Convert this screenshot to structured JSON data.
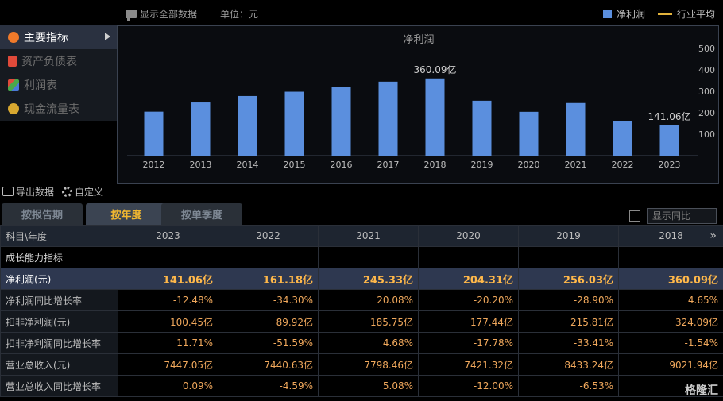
{
  "topbar": {
    "show_all": "显示全部数据",
    "unit": "单位：元",
    "legend_bar": "净利润",
    "legend_line": "行业平均"
  },
  "menu": {
    "items": [
      {
        "label": "主要指标",
        "icon": "star-icon",
        "color": "#f07a2a"
      },
      {
        "label": "资产负债表",
        "icon": "sheet-icon",
        "color": "#e04a3a"
      },
      {
        "label": "利润表",
        "icon": "cube-icon",
        "color": "#4aa84a"
      },
      {
        "label": "现金流量表",
        "icon": "coins-icon",
        "color": "#d8a830"
      }
    ]
  },
  "chart_data": {
    "type": "bar",
    "title": "净利润",
    "categories": [
      "2012",
      "2013",
      "2014",
      "2015",
      "2016",
      "2017",
      "2018",
      "2019",
      "2020",
      "2021",
      "2022",
      "2023"
    ],
    "values": [
      205,
      248,
      278,
      298,
      320,
      345,
      360.09,
      256.03,
      204.31,
      245.33,
      161.18,
      141.06
    ],
    "data_labels": {
      "6": "360.09亿",
      "11": "141.06亿"
    },
    "ylim": [
      0,
      500
    ],
    "yticks": [
      "500",
      "400",
      "300",
      "200",
      "100"
    ],
    "bar_color": "#5b8fde"
  },
  "tools": {
    "export": "导出数据",
    "custom": "自定义"
  },
  "tabs": [
    "按报告期",
    "按年度",
    "按单季度"
  ],
  "yoy": {
    "label": "显示同比"
  },
  "table": {
    "header_first": "科目\\年度",
    "years": [
      "2023",
      "2022",
      "2021",
      "2020",
      "2019",
      "2018"
    ],
    "more": "»",
    "rows": [
      {
        "label": "成长能力指标",
        "values": [
          "",
          "",
          "",
          "",
          "",
          ""
        ],
        "kind": "section"
      },
      {
        "label": "净利润(元)",
        "values": [
          "141.06亿",
          "161.18亿",
          "245.33亿",
          "204.31亿",
          "256.03亿",
          "360.09亿"
        ],
        "kind": "hl"
      },
      {
        "label": "净利润同比增长率",
        "values": [
          "-12.48%",
          "-34.30%",
          "20.08%",
          "-20.20%",
          "-28.90%",
          "4.65%"
        ],
        "kind": ""
      },
      {
        "label": "扣非净利润(元)",
        "values": [
          "100.45亿",
          "89.92亿",
          "185.75亿",
          "177.44亿",
          "215.81亿",
          "324.09亿"
        ],
        "kind": ""
      },
      {
        "label": "扣非净利润同比增长率",
        "values": [
          "11.71%",
          "-51.59%",
          "4.68%",
          "-17.78%",
          "-33.41%",
          "-1.54%"
        ],
        "kind": ""
      },
      {
        "label": "营业总收入(元)",
        "values": [
          "7447.05亿",
          "7440.63亿",
          "7798.46亿",
          "7421.32亿",
          "8433.24亿",
          "9021.94亿"
        ],
        "kind": ""
      },
      {
        "label": "营业总收入同比增长率",
        "values": [
          "0.09%",
          "-4.59%",
          "5.08%",
          "-12.00%",
          "-6.53%",
          ""
        ],
        "kind": ""
      }
    ]
  },
  "watermark": "格隆汇"
}
